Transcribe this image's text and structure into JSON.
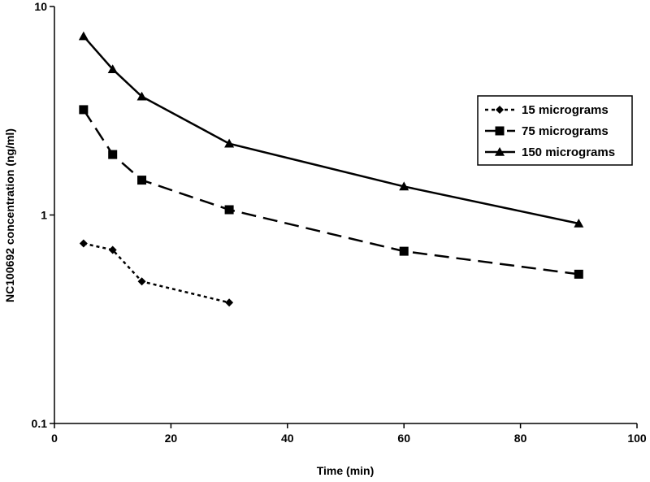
{
  "chart_data": {
    "type": "line",
    "title": "",
    "xlabel": "Time (min)",
    "ylabel": "NC100692 concentration (ng/ml)",
    "xlim": [
      0,
      100
    ],
    "ylim": [
      0.1,
      10
    ],
    "yscale": "log",
    "xticks": [
      0,
      20,
      40,
      60,
      80,
      100
    ],
    "xtick_labels": [
      "0",
      "20",
      "40",
      "60",
      "80",
      "100"
    ],
    "yticks": [
      0.1,
      1,
      10
    ],
    "ytick_labels": [
      "0.1",
      "1",
      "10"
    ],
    "grid": false,
    "legend_position": "right",
    "series": [
      {
        "name": "15 micrograms",
        "marker": "diamond",
        "dash": "dotted",
        "x": [
          5,
          10,
          15,
          30
        ],
        "y": [
          0.73,
          0.68,
          0.48,
          0.38
        ]
      },
      {
        "name": "75 micrograms",
        "marker": "square",
        "dash": "dashed",
        "x": [
          5,
          10,
          15,
          30,
          60,
          90
        ],
        "y": [
          3.2,
          1.95,
          1.47,
          1.06,
          0.67,
          0.52
        ]
      },
      {
        "name": "150 micrograms",
        "marker": "triangle",
        "dash": "solid",
        "x": [
          5,
          10,
          15,
          30,
          60,
          90
        ],
        "y": [
          7.2,
          5.0,
          3.7,
          2.2,
          1.37,
          0.91
        ]
      }
    ]
  }
}
